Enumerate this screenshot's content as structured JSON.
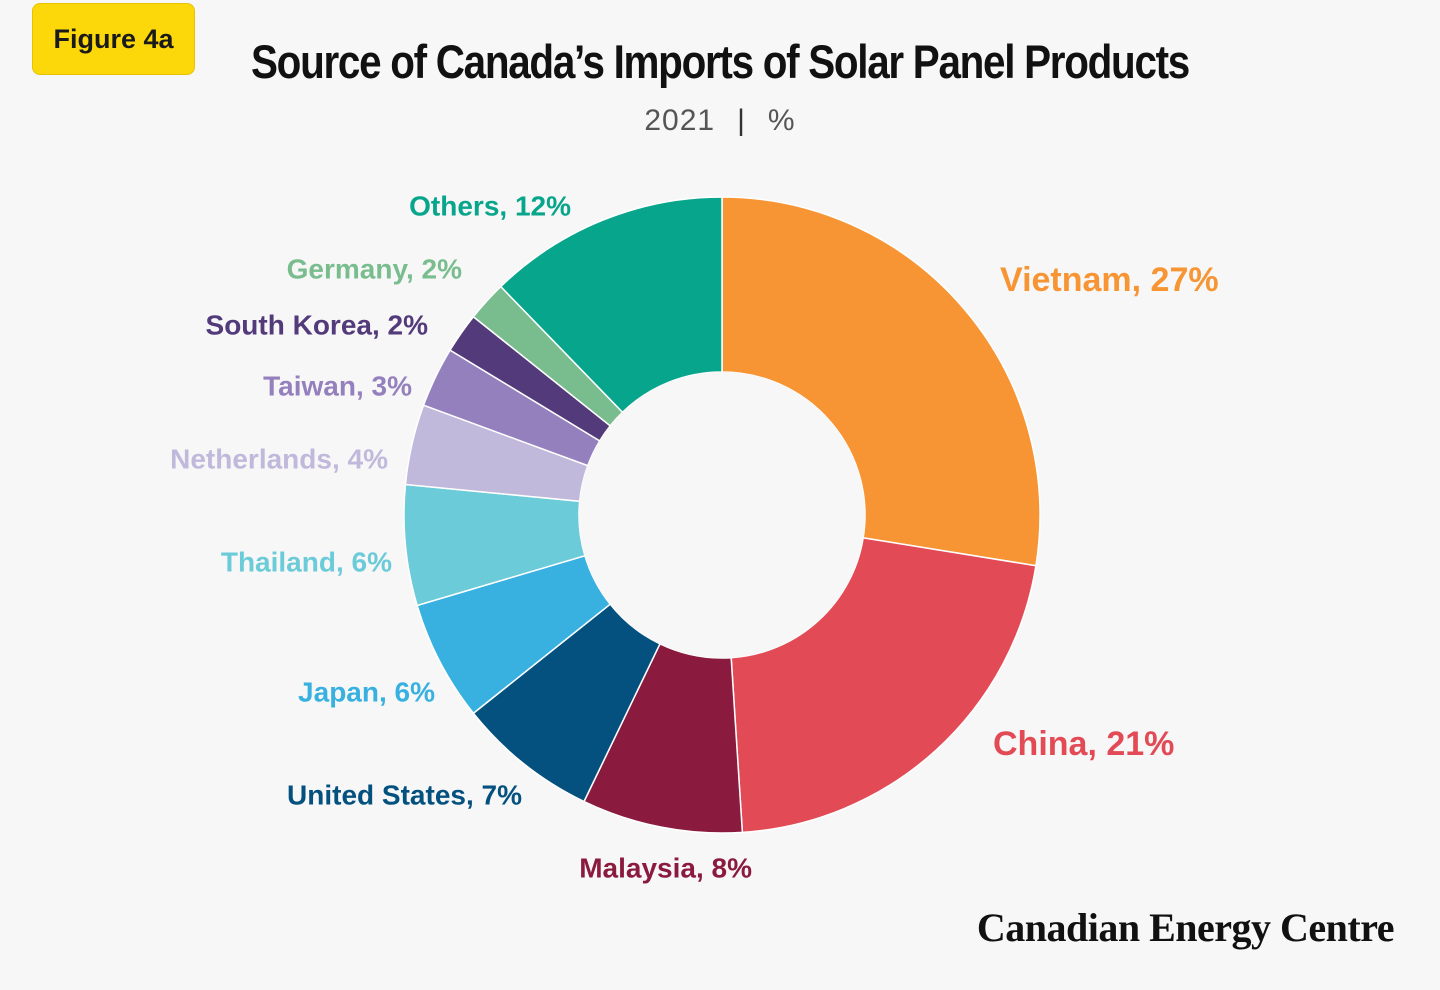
{
  "badge": {
    "label": "Figure 4a"
  },
  "header": {
    "title": "Source of Canada’s Imports of Solar Panel Products",
    "year": "2021",
    "separator": "|",
    "unit": "%"
  },
  "footer": {
    "brand": "Canadian Energy Centre"
  },
  "colors": {
    "background": "#f7f7f7",
    "badge": "#fcd80a"
  },
  "chart_data": {
    "type": "pie",
    "donut": true,
    "title": "Source of Canada’s Imports of Solar Panel Products",
    "subtitle": "2021 | %",
    "unit": "%",
    "slices": [
      {
        "label": "Vietnam, 27%",
        "name": "Vietnam",
        "value": 27,
        "color": "#f79534"
      },
      {
        "label": "China, 21%",
        "name": "China",
        "value": 21,
        "color": "#e24b56"
      },
      {
        "label": "Malaysia, 8%",
        "name": "Malaysia",
        "value": 8,
        "color": "#8b1a3f"
      },
      {
        "label": "United States, 7%",
        "name": "United States",
        "value": 7,
        "color": "#04517f"
      },
      {
        "label": "Japan, 6%",
        "name": "Japan",
        "value": 6,
        "color": "#38b1e1"
      },
      {
        "label": "Thailand, 6%",
        "name": "Thailand",
        "value": 6,
        "color": "#6ccbd8"
      },
      {
        "label": "Netherlands, 4%",
        "name": "Netherlands",
        "value": 4,
        "color": "#c1b9dc"
      },
      {
        "label": "Taiwan, 3%",
        "name": "Taiwan",
        "value": 3,
        "color": "#9580be"
      },
      {
        "label": "South Korea, 2%",
        "name": "South Korea",
        "value": 2,
        "color": "#533a7a"
      },
      {
        "label": "Germany, 2%",
        "name": "Germany",
        "value": 2,
        "color": "#79bd8f"
      },
      {
        "label": "Others, 12%",
        "name": "Others",
        "value": 12,
        "color": "#07a58b"
      }
    ]
  }
}
